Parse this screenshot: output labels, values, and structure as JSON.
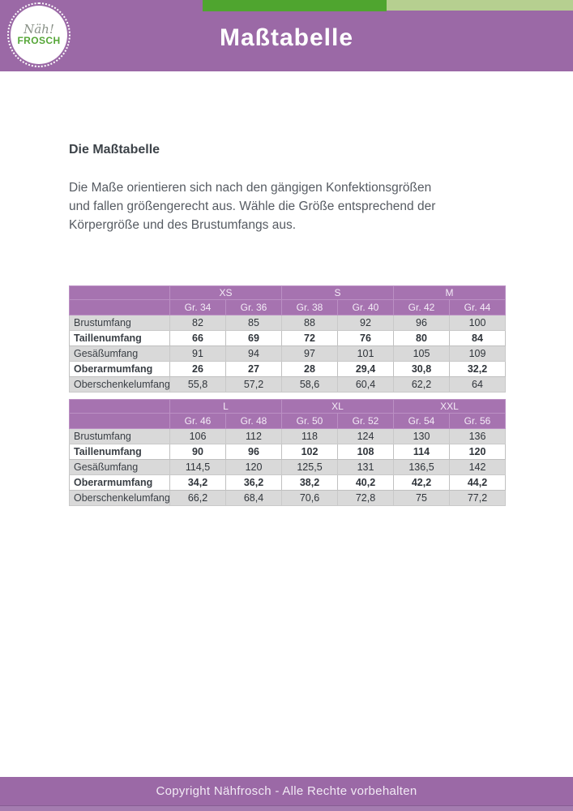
{
  "header": {
    "title": "Maßtabelle",
    "logo": {
      "line1": "Näh!",
      "line2": "FROSCH"
    }
  },
  "content": {
    "heading": "Die Maßtabelle",
    "paragraph_lines": [
      "Die Maße orientieren sich nach den gängigen Konfektionsgrößen",
      "und fallen größengerecht aus. Wähle die Größe entsprechend der",
      "Körpergröße und des Brustumfangs aus."
    ]
  },
  "tables": [
    {
      "size_groups": [
        "XS",
        "S",
        "M"
      ],
      "size_labels": [
        "Gr. 34",
        "Gr. 36",
        "Gr. 38",
        "Gr. 40",
        "Gr. 42",
        "Gr. 44"
      ],
      "rows": [
        {
          "label": "Brustumfang",
          "bold": false,
          "values": [
            "82",
            "85",
            "88",
            "92",
            "96",
            "100"
          ]
        },
        {
          "label": "Taillenumfang",
          "bold": true,
          "values": [
            "66",
            "69",
            "72",
            "76",
            "80",
            "84"
          ]
        },
        {
          "label": "Gesäßumfang",
          "bold": false,
          "values": [
            "91",
            "94",
            "97",
            "101",
            "105",
            "109"
          ]
        },
        {
          "label": "Oberarmumfang",
          "bold": true,
          "values": [
            "26",
            "27",
            "28",
            "29,4",
            "30,8",
            "32,2"
          ]
        },
        {
          "label": "Oberschenkelumfang",
          "bold": false,
          "values": [
            "55,8",
            "57,2",
            "58,6",
            "60,4",
            "62,2",
            "64"
          ]
        }
      ]
    },
    {
      "size_groups": [
        "L",
        "XL",
        "XXL"
      ],
      "size_labels": [
        "Gr. 46",
        "Gr. 48",
        "Gr. 50",
        "Gr. 52",
        "Gr. 54",
        "Gr. 56"
      ],
      "rows": [
        {
          "label": "Brustumfang",
          "bold": false,
          "values": [
            "106",
            "112",
            "118",
            "124",
            "130",
            "136"
          ]
        },
        {
          "label": "Taillenumfang",
          "bold": true,
          "values": [
            "90",
            "96",
            "102",
            "108",
            "114",
            "120"
          ]
        },
        {
          "label": "Gesäßumfang",
          "bold": false,
          "values": [
            "114,5",
            "120",
            "125,5",
            "131",
            "136,5",
            "142"
          ]
        },
        {
          "label": "Oberarmumfang",
          "bold": true,
          "values": [
            "34,2",
            "36,2",
            "38,2",
            "40,2",
            "42,2",
            "44,2"
          ]
        },
        {
          "label": "Oberschenkelumfang",
          "bold": false,
          "values": [
            "66,2",
            "68,4",
            "70,6",
            "72,8",
            "75",
            "77,2"
          ]
        }
      ]
    }
  ],
  "footer": {
    "copyright": "Copyright Nähfrosch - Alle Rechte vorbehalten"
  },
  "colors": {
    "header_purple": "#9b69a6",
    "table_header_purple": "#a673b0",
    "accent_green_dark": "#4fa52f",
    "accent_green_light": "#b6cf90",
    "logo_green": "#55a637",
    "row_stripe_gray": "#d9d9d9"
  }
}
